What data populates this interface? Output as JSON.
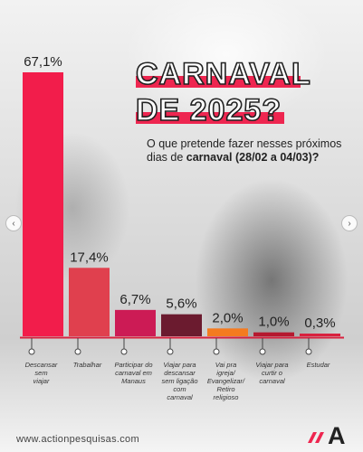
{
  "title": {
    "line1": "CARNAVAL",
    "line2": "DE 2025?"
  },
  "question": {
    "text": "O que pretende fazer nesses próximos dias de ",
    "emphasis": "carnaval",
    "dates": "(28/02 a 04/03)?"
  },
  "footer": {
    "url": "www.actionpesquisas.com",
    "logo_letter": "A"
  },
  "colors": {
    "accent": "#ee2650"
  },
  "icons": {
    "prev": "chevron-left-icon",
    "next": "chevron-right-icon"
  },
  "chart_data": {
    "type": "bar",
    "categories": [
      "Descansar sem viajar",
      "Trabalhar",
      "Participar do carnaval em Manaus",
      "Viajar para descansar sem ligação com carnaval",
      "Vai pra igreja/ Evangelizar/ Retiro religioso",
      "Viajar para curtir o carnaval",
      "Estudar"
    ],
    "values": [
      67.1,
      17.4,
      6.7,
      5.6,
      2.0,
      1.0,
      0.3
    ],
    "value_labels": [
      "67,1%",
      "17,4%",
      "6,7%",
      "5,6%",
      "2,0%",
      "1,0%",
      "0,3%"
    ],
    "bar_colors": [
      "#f21d4b",
      "#e0404e",
      "#cc1b55",
      "#6b1b2f",
      "#f47b20",
      "#b5192f",
      "#d8213e"
    ],
    "category_lines": [
      [
        "Descansar",
        "sem",
        "viajar"
      ],
      [
        "Trabalhar"
      ],
      [
        "Participar do",
        "carnaval em",
        "Manaus"
      ],
      [
        "Viajar para",
        "descansar",
        "sem ligação",
        "com",
        "carnaval"
      ],
      [
        "Vai pra",
        "igreja/",
        "Evangelizar/",
        "Retiro",
        "religioso"
      ],
      [
        "Viajar para",
        "curtir o",
        "carnaval"
      ],
      [
        "Estudar"
      ]
    ],
    "ylim": [
      0,
      67.1
    ],
    "grid": false,
    "legend": "none"
  }
}
